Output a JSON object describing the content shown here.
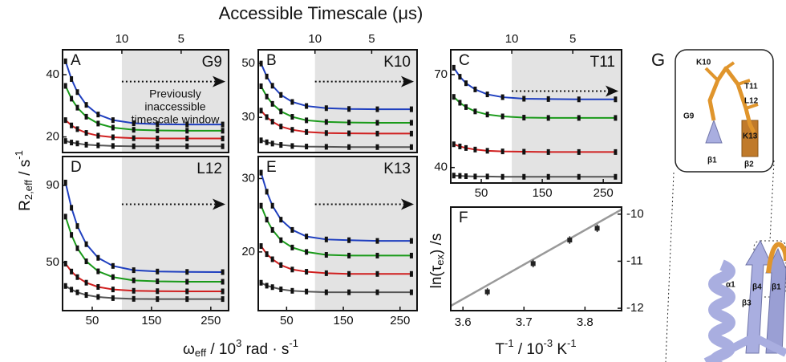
{
  "figure": {
    "title": "Accessible Timescale (μs)",
    "y_label": {
      "main": "R",
      "sub": "2,eff",
      "rest": " / s",
      "sup": "-1"
    },
    "x_label": {
      "main": "ω",
      "sub": "eff",
      "rest": " / 10",
      "sup": "3",
      "rest2": " rad · s",
      "sup2": "-1"
    }
  },
  "chart_data": [
    {
      "type": "dispersion",
      "label": "A",
      "residue": "G9",
      "annotation": [
        "Previously",
        "inaccessible",
        "timescale window"
      ],
      "xlim": [
        0,
        280
      ],
      "ylim": [
        15,
        48
      ],
      "yticks": [
        20,
        40
      ],
      "x2ticks": [
        10,
        5
      ],
      "shade_from": 100,
      "x": [
        5,
        15,
        25,
        40,
        60,
        85,
        120,
        160,
        210,
        270
      ],
      "series": [
        {
          "color": "#1f3fbf",
          "values": [
            44.3,
            38.6,
            34.4,
            30.3,
            27.2,
            25.4,
            24.4,
            24.1,
            24,
            24
          ]
        },
        {
          "color": "#1a9a1a",
          "values": [
            36.4,
            32.3,
            29.4,
            26.5,
            24.3,
            23.0,
            22.3,
            22.1,
            22,
            22
          ]
        },
        {
          "color": "#d02020",
          "values": [
            25.4,
            23.7,
            22.5,
            21.3,
            20.4,
            19.9,
            19.6,
            19.5,
            19.5,
            19.5
          ]
        },
        {
          "color": "#555555",
          "values": [
            18.7,
            18.2,
            17.9,
            17.5,
            17.3,
            17.1,
            17,
            17,
            17,
            17
          ]
        }
      ]
    },
    {
      "type": "dispersion",
      "label": "B",
      "residue": "K10",
      "xlim": [
        0,
        280
      ],
      "ylim": [
        17,
        55
      ],
      "yticks": [
        30,
        50
      ],
      "x2ticks": [
        10,
        5
      ],
      "shade_from": 100,
      "x": [
        5,
        15,
        25,
        40,
        60,
        85,
        120,
        160,
        210,
        270
      ],
      "series": [
        {
          "color": "#1f3fbf",
          "values": [
            49.9,
            45.1,
            41.7,
            38.3,
            35.7,
            34.2,
            33.4,
            33.1,
            33,
            33
          ]
        },
        {
          "color": "#1a9a1a",
          "values": [
            41.5,
            37.7,
            35,
            32.2,
            30.2,
            28.9,
            28.3,
            28.1,
            28,
            28
          ]
        },
        {
          "color": "#d02020",
          "values": [
            32.5,
            30.1,
            28.4,
            26.6,
            25.4,
            24.6,
            24.2,
            24.1,
            24,
            24
          ]
        },
        {
          "color": "#555555",
          "values": [
            21.5,
            20.8,
            20.3,
            19.8,
            19.4,
            19.2,
            19.1,
            19,
            19,
            19
          ]
        }
      ]
    },
    {
      "type": "dispersion",
      "label": "C",
      "residue": "T11",
      "xlim": [
        0,
        280
      ],
      "ylim": [
        35,
        78
      ],
      "yticks": [
        40,
        70
      ],
      "xticks": [
        50,
        150,
        250
      ],
      "x2ticks": [
        10,
        5
      ],
      "shade_from": 100,
      "x": [
        5,
        15,
        25,
        40,
        60,
        85,
        120,
        160,
        210,
        270
      ],
      "series": [
        {
          "color": "#1f3fbf",
          "values": [
            72.2,
            69.3,
            67.2,
            65.2,
            63.6,
            62.7,
            62.2,
            62.1,
            62,
            62
          ]
        },
        {
          "color": "#1a9a1a",
          "values": [
            62.8,
            60.9,
            59.5,
            58.1,
            57.1,
            56.5,
            56.1,
            56,
            56,
            56
          ]
        },
        {
          "color": "#d02020",
          "values": [
            47.5,
            46.8,
            46.3,
            45.8,
            45.4,
            45.2,
            45.1,
            45,
            45,
            45
          ]
        },
        {
          "color": "#555555",
          "values": [
            37.4,
            37.3,
            37.2,
            37.1,
            37.1,
            37,
            37,
            37,
            37,
            37
          ]
        }
      ]
    },
    {
      "type": "dispersion",
      "label": "D",
      "residue": "L12",
      "xlim": [
        0,
        280
      ],
      "ylim": [
        25,
        105
      ],
      "yticks": [
        50,
        90
      ],
      "xticks": [
        50,
        150,
        250
      ],
      "shade_from": 100,
      "x": [
        5,
        15,
        25,
        40,
        60,
        85,
        120,
        160,
        210,
        270
      ],
      "series": [
        {
          "color": "#1f3fbf",
          "values": [
            91.5,
            78.4,
            68.9,
            59.5,
            52.4,
            48.2,
            46,
            45.3,
            45.1,
            45
          ]
        },
        {
          "color": "#1a9a1a",
          "values": [
            73.8,
            64.3,
            57.4,
            50.6,
            45.4,
            42.4,
            40.7,
            40.2,
            40,
            40
          ]
        },
        {
          "color": "#d02020",
          "values": [
            49.4,
            45.3,
            42.4,
            39.5,
            37.3,
            36,
            35.3,
            35.1,
            35,
            35
          ]
        },
        {
          "color": "#555555",
          "values": [
            37.8,
            35.9,
            34.5,
            33.1,
            32.1,
            31.5,
            31.1,
            31,
            31,
            31
          ]
        }
      ]
    },
    {
      "type": "dispersion",
      "label": "E",
      "residue": "K13",
      "xlim": [
        0,
        280
      ],
      "ylim": [
        12,
        33
      ],
      "yticks": [
        20,
        30
      ],
      "xticks": [
        50,
        150,
        250
      ],
      "shade_from": 100,
      "x": [
        5,
        15,
        25,
        40,
        60,
        85,
        120,
        160,
        210,
        270
      ],
      "series": [
        {
          "color": "#1f3fbf",
          "values": [
            30.8,
            28.2,
            26.3,
            24.4,
            23,
            22.1,
            21.7,
            21.6,
            21.5,
            21.5
          ]
        },
        {
          "color": "#1a9a1a",
          "values": [
            26.3,
            24.4,
            23,
            21.6,
            20.6,
            20,
            19.6,
            19.5,
            19.5,
            19.5
          ]
        },
        {
          "color": "#d02020",
          "values": [
            20.8,
            19.7,
            19,
            18.2,
            17.6,
            17.3,
            17.1,
            17,
            17,
            17
          ]
        },
        {
          "color": "#555555",
          "values": [
            15.8,
            15.4,
            15.2,
            14.9,
            14.7,
            14.6,
            14.5,
            14.5,
            14.5,
            14.5
          ]
        }
      ]
    },
    {
      "type": "scatter",
      "label": "F",
      "y_label": {
        "main": "ln(τ",
        "sub": "ex",
        "rest": ") /s"
      },
      "x_label": {
        "main": "T",
        "sup": "-1",
        "rest": " / 10",
        "sup2": "-3",
        "rest2": " K",
        "sup3": "-1"
      },
      "xlim": [
        3.58,
        3.86
      ],
      "ylim": [
        -12.05,
        -9.85
      ],
      "xticks": [
        3.6,
        3.7,
        3.8
      ],
      "yticks": [
        -10,
        -11,
        -12
      ],
      "x": [
        3.64,
        3.715,
        3.775,
        3.82
      ],
      "y": [
        -11.65,
        -11.05,
        -10.55,
        -10.3
      ],
      "errors": [
        0.08,
        0.08,
        0.08,
        0.08
      ],
      "fit": {
        "x": [
          3.58,
          3.86
        ],
        "y": [
          -11.95,
          -9.9
        ]
      },
      "color": "#222222",
      "fit_color": "#999999"
    }
  ],
  "structure": {
    "label": "G",
    "inset": [
      "K10",
      "T11",
      "L12",
      "G9",
      "K13",
      "β1",
      "β2"
    ],
    "main": [
      "α1",
      "β3",
      "β4",
      "β1"
    ]
  }
}
